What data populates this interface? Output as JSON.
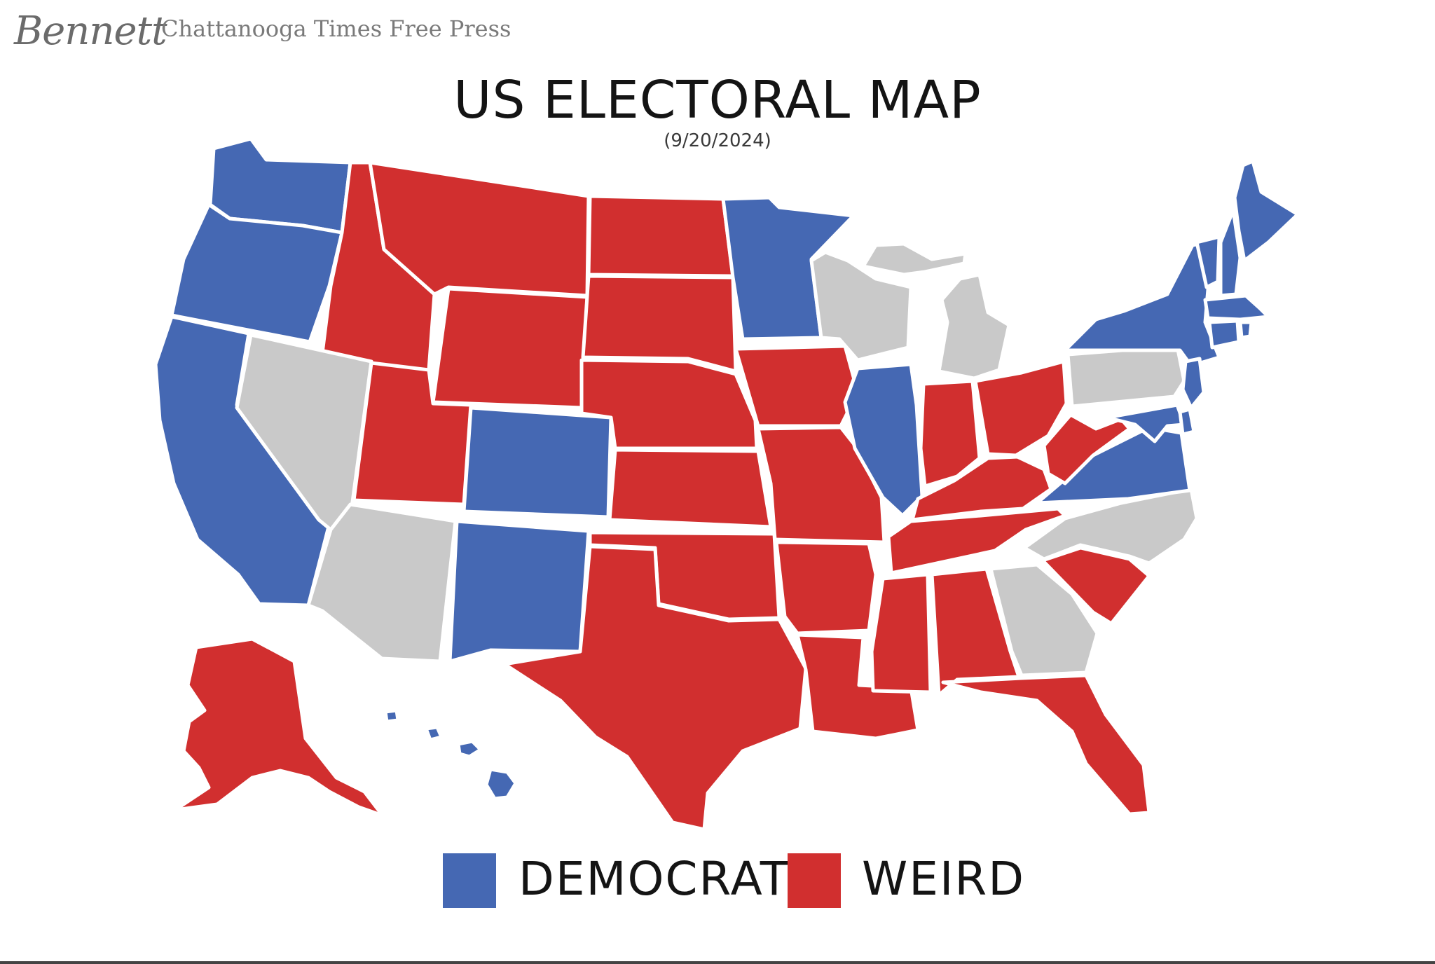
{
  "signature": "Bennett",
  "publication": "Chattanooga Times Free Press",
  "title": "US ELECTORAL MAP",
  "date": "(9/20/2024)",
  "colors": {
    "democrat": "#4568b3",
    "weird": "#d12f2f",
    "undecided": "#c9c9c9",
    "border": "#ffffff"
  },
  "legend": [
    {
      "label": "DEMOCRAT",
      "color": "#4568b3"
    },
    {
      "label": "WEIRD",
      "color": "#d12f2f"
    }
  ],
  "states": {
    "democrat": [
      "WA",
      "OR",
      "CA",
      "CO",
      "NM",
      "MN",
      "IL",
      "VA",
      "NY",
      "PA-NJ",
      "MD",
      "DE",
      "VT",
      "NH",
      "ME",
      "MA",
      "CT",
      "RI",
      "HI"
    ],
    "weird": [
      "ID",
      "MT",
      "WY",
      "UT",
      "ND",
      "SD",
      "NE",
      "KS",
      "OK",
      "TX",
      "IA",
      "MO",
      "AR",
      "LA",
      "MS",
      "AL",
      "TN",
      "KY",
      "IN",
      "OH",
      "WV",
      "SC",
      "FL",
      "AK"
    ],
    "undecided": [
      "NV",
      "AZ",
      "WI",
      "MI",
      "PA",
      "NC",
      "GA"
    ]
  }
}
